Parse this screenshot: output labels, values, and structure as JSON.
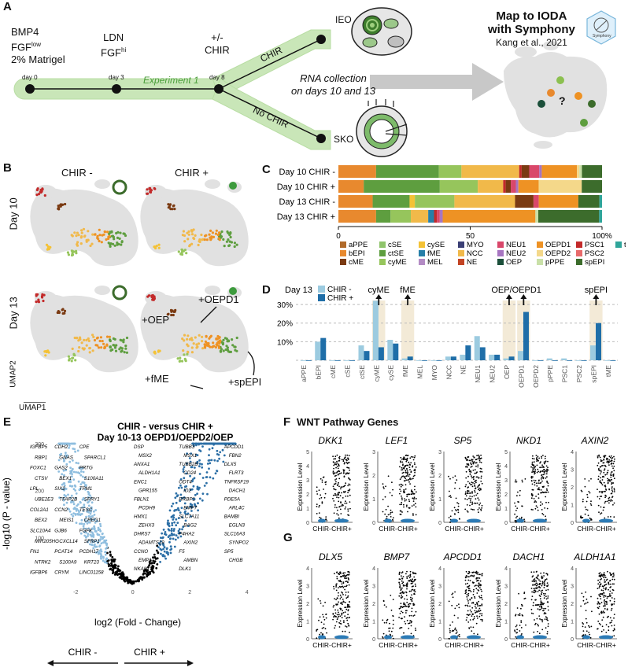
{
  "panels": {
    "a": "A",
    "b": "B",
    "c": "C",
    "d": "D",
    "e": "E",
    "f": "F",
    "g": "G"
  },
  "panel_a": {
    "cond0": [
      "BMP4",
      "FGF",
      "low",
      "2% Matrigel"
    ],
    "cond3": [
      "LDN",
      "FGF",
      "hi"
    ],
    "cond8": [
      "+/-",
      "CHIR"
    ],
    "day_labels": [
      "day 0",
      "day 3",
      "day 8"
    ],
    "experiment": "Experiment 1",
    "chir": "CHIR",
    "no_chir": "No CHIR",
    "ieo": "IEO",
    "sko": "SKO",
    "rna": [
      "RNA collection",
      "on days 10 and 13"
    ],
    "map_title": [
      "Map to IODA",
      "with Symphony"
    ],
    "citation": "Kang et al., 2021",
    "badge": "Symphony",
    "question": "?"
  },
  "panel_b": {
    "col_minus": "CHIR -",
    "col_plus": "CHIR +",
    "row10": "Day 10",
    "row13": "Day 13",
    "umap2": "UMAP2",
    "umap1": "UMAP1",
    "annotations": [
      "+OEPD1",
      "+OEP",
      "+fME",
      "+spEPI"
    ]
  },
  "colors": {
    "aPPE": "#b06a2a",
    "bEPI": "#e8892e",
    "cME": "#7a3a12",
    "cSE": "#8fc46b",
    "ctSE": "#5e9e3f",
    "cyME": "#96c55c",
    "cySE": "#f4c236",
    "fME": "#267fa8",
    "MEL": "#b38bc4",
    "MYO": "#3b3f75",
    "NCC": "#f1b94a",
    "NE": "#c34424",
    "NEU1": "#d9476a",
    "NEU2": "#a775c1",
    "OEP": "#1b4f3a",
    "OEPD1": "#ee9224",
    "OEPD2": "#f4d88a",
    "pPPE": "#c9e0a8",
    "PSC1": "#c32a2a",
    "PSC2": "#e86b6b",
    "spEPI": "#3c6c2c",
    "tME": "#2fa59a"
  },
  "chart_data": [
    {
      "type": "bar",
      "orientation": "horizontal",
      "stacked": true,
      "categories": [
        "Day 10 CHIR -",
        "Day 10 CHIR +",
        "Day 13 CHIR -",
        "Day 13 CHIR +"
      ],
      "x_ticks": [
        "0",
        "50",
        "100%"
      ],
      "xlim": [
        0,
        100
      ],
      "legend": [
        "aPPE",
        "bEPI",
        "cME",
        "cSE",
        "ctSE",
        "cyME",
        "cySE",
        "fME",
        "MEL",
        "MYO",
        "NCC",
        "NE",
        "NEU1",
        "NEU2",
        "OEP",
        "OEPD1",
        "OEPD2",
        "pPPE",
        "PSC1",
        "PSC2",
        "spEPI",
        "tME"
      ],
      "series": [
        {
          "name": "bEPI",
          "values": [
            15,
            10,
            13,
            13
          ]
        },
        {
          "name": "ctSE",
          "values": [
            25,
            30,
            14,
            5
          ]
        },
        {
          "name": "cySE",
          "values": [
            0,
            0,
            2,
            0
          ]
        },
        {
          "name": "cyME",
          "values": [
            9,
            15,
            15,
            7
          ]
        },
        {
          "name": "NCC",
          "values": [
            23,
            10,
            23,
            6
          ]
        },
        {
          "name": "fME",
          "values": [
            0,
            0,
            0,
            2
          ]
        },
        {
          "name": "PSC1",
          "values": [
            1,
            1,
            0,
            1
          ]
        },
        {
          "name": "cME",
          "values": [
            3,
            2,
            7,
            0
          ]
        },
        {
          "name": "NEU1",
          "values": [
            4,
            2,
            2,
            1
          ]
        },
        {
          "name": "NEU2",
          "values": [
            1,
            1,
            0,
            1
          ]
        },
        {
          "name": "OEPD1",
          "values": [
            14,
            8,
            15,
            32
          ]
        },
        {
          "name": "OEPD2",
          "values": [
            1,
            17,
            0,
            0
          ]
        },
        {
          "name": "pPPE",
          "values": [
            1,
            0,
            0,
            1
          ]
        },
        {
          "name": "spEPI",
          "values": [
            8,
            8,
            8,
            21
          ]
        },
        {
          "name": "tME",
          "values": [
            0,
            0,
            1,
            1
          ]
        }
      ]
    },
    {
      "type": "bar",
      "title": "Day 13",
      "categories": [
        "aPPE",
        "bEPI",
        "cME",
        "cSE",
        "ctSE",
        "cyME",
        "cySE",
        "fME",
        "MEL",
        "MYO",
        "NCC",
        "NE",
        "NEU1",
        "NEU2",
        "OEP",
        "OEPD1",
        "OEPD2",
        "pPPE",
        "PSC1",
        "PSC2",
        "spEPI",
        "tME"
      ],
      "y_ticks": [
        "10%",
        "20%",
        "30%"
      ],
      "ylim": [
        0,
        33
      ],
      "series": [
        {
          "name": "CHIR -",
          "color": "#9ccbe0",
          "values": [
            0,
            10,
            0,
            0,
            8,
            32,
            11,
            1,
            0,
            0,
            2,
            3,
            13,
            3,
            1,
            5,
            0,
            1,
            1,
            0,
            8,
            0
          ]
        },
        {
          "name": "CHIR +",
          "color": "#1f6ea8",
          "values": [
            0,
            12,
            0,
            0,
            5,
            7,
            9,
            2,
            0,
            0,
            2,
            8,
            7,
            3,
            2,
            26,
            0,
            0,
            0,
            0,
            20,
            0
          ]
        }
      ],
      "highlighted": [
        "cyME",
        "fME",
        "OEP",
        "OEPD1",
        "spEPI"
      ],
      "annotations": [
        "cyME",
        "fME",
        "OEP/OEPD1",
        "spEPI"
      ]
    },
    {
      "type": "scatter",
      "title": [
        "CHIR - versus CHIR +",
        "Day 10-13 OEPD1/OEPD2/OEP"
      ],
      "xlabel": "log2 (Fold - Change)",
      "ylabel": "-log10 (P - value)",
      "x_ticks": [
        "-2",
        "0",
        "2",
        "4"
      ],
      "y_ticks": [
        "300",
        "200",
        "100"
      ],
      "xlim": [
        -3,
        5
      ],
      "ylim": [
        0,
        310
      ],
      "direction_labels": [
        "CHIR -",
        "CHIR +"
      ],
      "labels_left": [
        "IGFBP5",
        "CDH2",
        "CPE",
        "RBP1",
        "GNAS",
        "SPARCL1",
        "FOXC1",
        "GAS2",
        "PRTG",
        "CTSV",
        "BEX1",
        "S100A11",
        "LPL",
        "SIX2",
        "TPM1",
        "UBE2E3",
        "TFAP2B",
        "SPRY1",
        "COL2A1",
        "CCN2",
        "TESC",
        "BEX2",
        "MEIS1",
        "CREG1",
        "SLC10A4",
        "GJB6",
        "FGF8",
        "MIR205HG",
        "CXCL14",
        "SFRP1",
        "FN1",
        "PCAT14",
        "PCDH17",
        "NTRK2",
        "S100A9",
        "KRT23",
        "IGFBP6",
        "CRYM",
        "LINC01158"
      ],
      "labels_right": [
        "DSP",
        "TUBB3",
        "APCDD1",
        "MSX2",
        "MSX1",
        "FBN2",
        "ANXA1",
        "TUBB2B",
        "DLX5",
        "ALDH1A1",
        "CD24",
        "FLRT3",
        "ENC1",
        "ODT4",
        "TNFRSF19",
        "GPR155",
        "ID2",
        "DACH1",
        "FBLN1",
        "RRBP1",
        "PDE5A",
        "PCDH9",
        "BMP7",
        "ARL4C",
        "HMX1",
        "SLC7A11",
        "BAMBI",
        "ZEHX3",
        "BAG2",
        "EGLN3",
        "DHRS7",
        "P4HA2",
        "SLC16A3",
        "ADAMTS19",
        "AXIN2",
        "SYNPO2",
        "CCNO",
        "F5",
        "SP5",
        "EMP1",
        "AMBN",
        "CHGB",
        "NKAIN",
        "DLK1"
      ]
    }
  ],
  "panel_f": {
    "title": "WNT Pathway Genes",
    "genes": [
      "DKK1",
      "LEF1",
      "SP5",
      "NKD1",
      "AXIN2"
    ],
    "yticks": [
      [
        "5",
        "4",
        "3",
        "2",
        "1",
        "0"
      ],
      [
        "3",
        "2",
        "1",
        "0"
      ],
      [
        "3",
        "2",
        "1",
        "0"
      ],
      [
        "5",
        "4",
        "3",
        "2",
        "1",
        "0"
      ],
      [
        "4",
        "3",
        "2",
        "1",
        "0"
      ]
    ]
  },
  "panel_g": {
    "genes": [
      "DLX5",
      "BMP7",
      "APCDD1",
      "DACH1",
      "ALDH1A1"
    ],
    "yticks": [
      [
        "4",
        "3",
        "2",
        "1",
        "0"
      ],
      [
        "4",
        "3",
        "2",
        "1",
        "0"
      ],
      [
        "4",
        "3",
        "2",
        "1",
        "0"
      ],
      [
        "4",
        "3",
        "2",
        "1",
        "0"
      ],
      [
        "4",
        "3",
        "2",
        "1",
        "0"
      ]
    ]
  },
  "violin": {
    "ylabel": "Expression Level",
    "xlabels": [
      "CHIR-",
      "CHIR+"
    ]
  }
}
